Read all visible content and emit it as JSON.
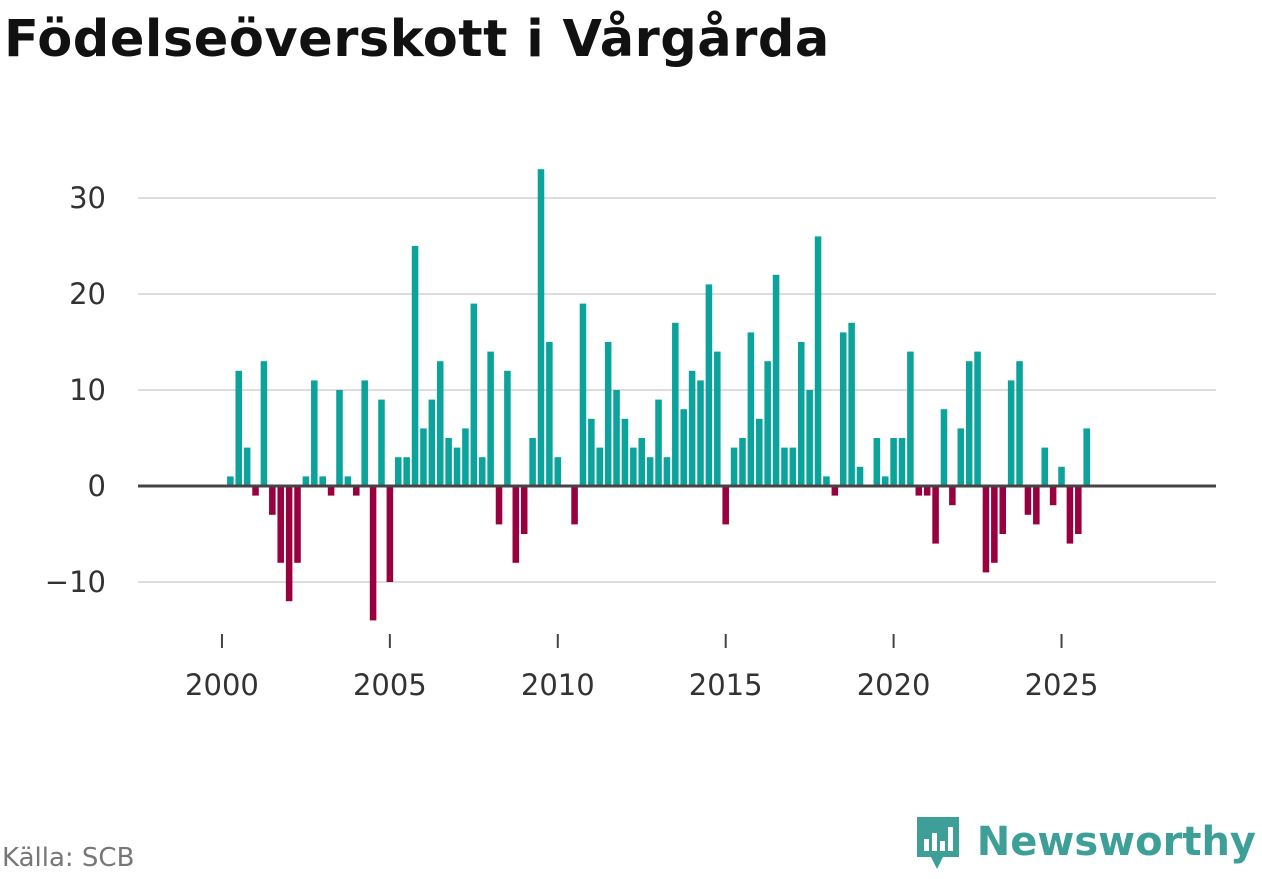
{
  "title": "Födelseöverskott i Vårgårda",
  "source": "Källa: SCB",
  "brand": {
    "name": "Newsworthy",
    "icon": "newsworthy-logo-icon"
  },
  "colors": {
    "positive": "#0ba39b",
    "negative": "#98003f",
    "grid": "#dddddd",
    "baseline": "#444444",
    "brand": "#3d9f98"
  },
  "chart_data": {
    "type": "bar",
    "title": "Födelseöverskott i Vårgårda",
    "xlabel": "",
    "ylabel": "",
    "ylim": [
      -15,
      35
    ],
    "xlim": [
      1997.5,
      2029.6
    ],
    "yticks": [
      -10,
      0,
      10,
      20,
      30
    ],
    "ytick_labels": [
      "−10",
      "0",
      "10",
      "20",
      "30"
    ],
    "xticks": [
      2000,
      2005,
      2010,
      2015,
      2020,
      2025
    ],
    "xtick_labels": [
      "2000",
      "2005",
      "2010",
      "2015",
      "2020",
      "2025"
    ],
    "start_year": 2000,
    "periods_per_year": 4,
    "values": [
      0,
      1,
      12,
      4,
      -1,
      13,
      -3,
      -8,
      -12,
      -8,
      1,
      11,
      1,
      -1,
      10,
      1,
      -1,
      11,
      -14,
      9,
      -10,
      3,
      3,
      25,
      6,
      9,
      13,
      5,
      4,
      6,
      19,
      3,
      14,
      -4,
      12,
      -8,
      -5,
      5,
      33,
      15,
      3,
      0,
      -4,
      19,
      7,
      4,
      15,
      10,
      7,
      4,
      5,
      3,
      9,
      3,
      17,
      8,
      12,
      11,
      21,
      14,
      -4,
      4,
      5,
      16,
      7,
      13,
      22,
      4,
      4,
      15,
      10,
      26,
      1,
      -1,
      16,
      17,
      2,
      0,
      5,
      1,
      5,
      5,
      14,
      -1,
      -1,
      -6,
      8,
      -2,
      6,
      13,
      14,
      -9,
      -8,
      -5,
      11,
      13,
      -3,
      -4,
      4,
      -2,
      2,
      -6,
      -5,
      6
    ]
  }
}
